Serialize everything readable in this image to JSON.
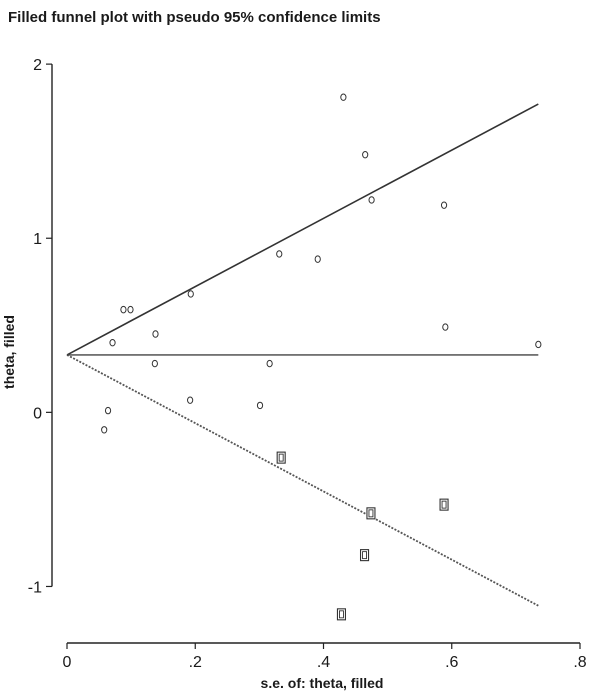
{
  "chart_data": {
    "type": "scatter",
    "title": "Filled funnel plot with pseudo 95% confidence limits",
    "xlabel": "s.e. of: theta, filled",
    "ylabel": "theta, filled",
    "xlim": [
      0,
      0.8
    ],
    "ylim": [
      -1.25,
      2.15
    ],
    "x_ticks": [
      0,
      0.2,
      0.4,
      0.6,
      0.8
    ],
    "x_tick_labels": [
      "0",
      ".2",
      ".4",
      ".6",
      ".8"
    ],
    "y_ticks": [
      -1,
      0,
      1,
      2
    ],
    "y_tick_labels": [
      "-1",
      "0",
      "1",
      "2"
    ],
    "pooled_estimate": 0.33,
    "ci_max_se": 0.735,
    "series": [
      {
        "marker": "circle",
        "points": [
          {
            "x": 0.058,
            "y": -0.1
          },
          {
            "x": 0.064,
            "y": 0.01
          },
          {
            "x": 0.071,
            "y": 0.4
          },
          {
            "x": 0.088,
            "y": 0.59
          },
          {
            "x": 0.099,
            "y": 0.59
          },
          {
            "x": 0.137,
            "y": 0.28
          },
          {
            "x": 0.138,
            "y": 0.45
          },
          {
            "x": 0.192,
            "y": 0.07
          },
          {
            "x": 0.193,
            "y": 0.68
          },
          {
            "x": 0.301,
            "y": 0.04
          },
          {
            "x": 0.316,
            "y": 0.28
          },
          {
            "x": 0.331,
            "y": 0.91
          },
          {
            "x": 0.391,
            "y": 0.88
          },
          {
            "x": 0.431,
            "y": 1.81
          },
          {
            "x": 0.465,
            "y": 1.48
          },
          {
            "x": 0.475,
            "y": 1.22
          },
          {
            "x": 0.588,
            "y": 1.19
          },
          {
            "x": 0.59,
            "y": 0.49
          },
          {
            "x": 0.735,
            "y": 0.39
          }
        ]
      },
      {
        "marker": "square",
        "points": [
          {
            "x": 0.334,
            "y": -0.26
          },
          {
            "x": 0.474,
            "y": -0.58
          },
          {
            "x": 0.588,
            "y": -0.53
          },
          {
            "x": 0.464,
            "y": -0.82
          },
          {
            "x": 0.428,
            "y": -1.16
          }
        ]
      }
    ]
  }
}
